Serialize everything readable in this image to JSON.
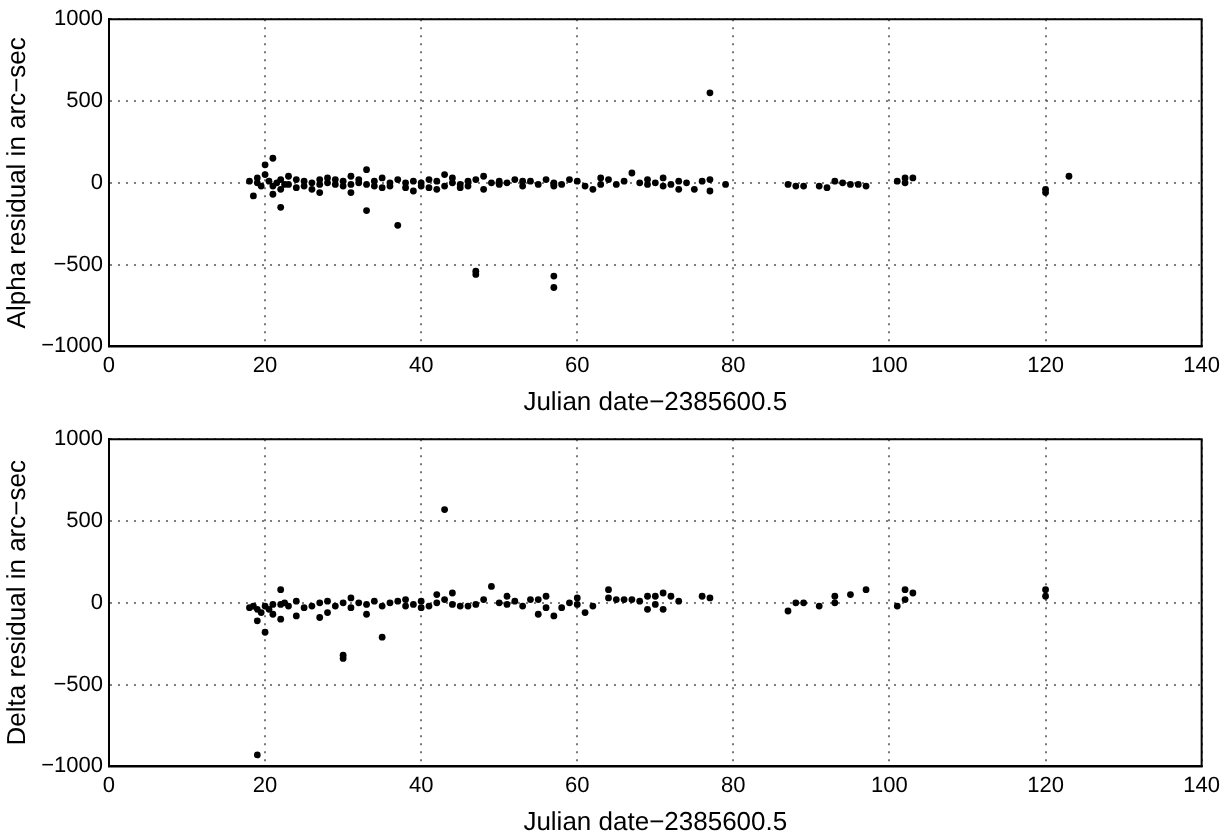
{
  "chart_data": [
    {
      "type": "scatter",
      "xlabel": "Julian date−2385600.5",
      "ylabel": "Alpha residual in arc−sec",
      "xlim": [
        0,
        140
      ],
      "ylim": [
        -1000,
        1000
      ],
      "xticks": [
        0,
        20,
        40,
        60,
        80,
        100,
        120,
        140
      ],
      "yticks": [
        -1000,
        -500,
        0,
        500,
        1000
      ],
      "grid": true,
      "marker": "circle",
      "legend": false,
      "series": [
        {
          "color": "#000000",
          "x": [
            18,
            18.5,
            19,
            19,
            19.5,
            20,
            20,
            20.5,
            21,
            21,
            21,
            21.5,
            22,
            22,
            22,
            22.5,
            23,
            23,
            24,
            24,
            25,
            25,
            26,
            26,
            27,
            27,
            27,
            28,
            28,
            29,
            29,
            30,
            30,
            31,
            31,
            31,
            32,
            32,
            33,
            33,
            33,
            34,
            34,
            35,
            35,
            36,
            36,
            37,
            37,
            38,
            38,
            39,
            39,
            40,
            40,
            41,
            41,
            42,
            42,
            43,
            43,
            44,
            44,
            45,
            45,
            46,
            46,
            47,
            47,
            47,
            48,
            48,
            49,
            50,
            50,
            51,
            52,
            53,
            53,
            54,
            55,
            56,
            57,
            57,
            57,
            58,
            59,
            60,
            61,
            62,
            63,
            63,
            64,
            65,
            66,
            67,
            68,
            69,
            69,
            70,
            71,
            71,
            72,
            73,
            73,
            74,
            75,
            76,
            77,
            77,
            77,
            79,
            87,
            88,
            89,
            91,
            92,
            93,
            94,
            95,
            96,
            97,
            101,
            102,
            102,
            103,
            120,
            120,
            123,
            57,
            57
          ],
          "values": [
            10,
            -80,
            0,
            30,
            -20,
            50,
            110,
            10,
            -20,
            -70,
            150,
            0,
            20,
            -40,
            -150,
            -10,
            40,
            -10,
            20,
            -30,
            10,
            -20,
            0,
            -40,
            20,
            -10,
            -60,
            0,
            30,
            -10,
            20,
            -20,
            10,
            40,
            -10,
            -60,
            0,
            20,
            -10,
            80,
            -170,
            10,
            -20,
            30,
            -30,
            0,
            -20,
            20,
            -260,
            0,
            -30,
            10,
            -50,
            0,
            -20,
            20,
            -30,
            10,
            -40,
            50,
            -20,
            0,
            30,
            -10,
            -30,
            10,
            -20,
            20,
            -540,
            -560,
            -40,
            40,
            0,
            10,
            -10,
            0,
            20,
            10,
            -20,
            10,
            -10,
            20,
            -10,
            0,
            -20,
            -10,
            20,
            10,
            -20,
            -40,
            30,
            -10,
            20,
            -10,
            10,
            60,
            0,
            -10,
            20,
            0,
            -20,
            30,
            -10,
            -40,
            10,
            0,
            -40,
            10,
            20,
            -50,
            550,
            -10,
            -10,
            -20,
            -20,
            -20,
            -30,
            10,
            0,
            -10,
            -10,
            -20,
            10,
            30,
            0,
            30,
            -40,
            -60,
            40,
            -570,
            -640
          ]
        }
      ]
    },
    {
      "type": "scatter",
      "xlabel": "Julian date−2385600.5",
      "ylabel": "Delta residual in arc−sec",
      "xlim": [
        0,
        140
      ],
      "ylim": [
        -1000,
        1000
      ],
      "xticks": [
        0,
        20,
        40,
        60,
        80,
        100,
        120,
        140
      ],
      "yticks": [
        -1000,
        -500,
        0,
        500,
        1000
      ],
      "grid": true,
      "marker": "circle",
      "legend": false,
      "series": [
        {
          "color": "#000000",
          "x": [
            18,
            18.5,
            19,
            19,
            19,
            19.5,
            20,
            20,
            20.5,
            21,
            21,
            22,
            22,
            22,
            22.5,
            23,
            24,
            24,
            25,
            26,
            27,
            27,
            28,
            28,
            29,
            30,
            30,
            30,
            31,
            31,
            32,
            33,
            33,
            34,
            35,
            35,
            36,
            37,
            38,
            38,
            39,
            40,
            40,
            41,
            42,
            42,
            43,
            43,
            44,
            44,
            45,
            46,
            47,
            48,
            49,
            50,
            51,
            51,
            52,
            53,
            54,
            55,
            55,
            56,
            56,
            57,
            58,
            59,
            60,
            60,
            61,
            62,
            64,
            64,
            65,
            66,
            67,
            68,
            69,
            69,
            70,
            70,
            71,
            71,
            72,
            73,
            76,
            77,
            87,
            88,
            89,
            91,
            93,
            93,
            95,
            97,
            101,
            102,
            102,
            103,
            120,
            120
          ],
          "values": [
            -30,
            -20,
            -930,
            -110,
            -40,
            -60,
            -180,
            -20,
            -40,
            -10,
            -70,
            80,
            -10,
            -100,
            0,
            -20,
            -80,
            10,
            -30,
            -20,
            -90,
            0,
            -60,
            10,
            -20,
            -320,
            -340,
            0,
            30,
            -30,
            0,
            -10,
            -70,
            10,
            -210,
            -20,
            0,
            10,
            -20,
            20,
            -10,
            -30,
            10,
            -20,
            50,
            0,
            570,
            20,
            -10,
            60,
            -20,
            -20,
            -10,
            20,
            100,
            0,
            -10,
            40,
            10,
            -20,
            20,
            -70,
            20,
            -30,
            40,
            -80,
            -30,
            0,
            -10,
            30,
            -60,
            -20,
            80,
            30,
            20,
            20,
            20,
            10,
            40,
            -40,
            -10,
            40,
            -40,
            60,
            40,
            10,
            40,
            30,
            -50,
            0,
            0,
            -20,
            0,
            40,
            50,
            80,
            -20,
            80,
            20,
            60,
            80,
            40
          ]
        }
      ]
    }
  ]
}
